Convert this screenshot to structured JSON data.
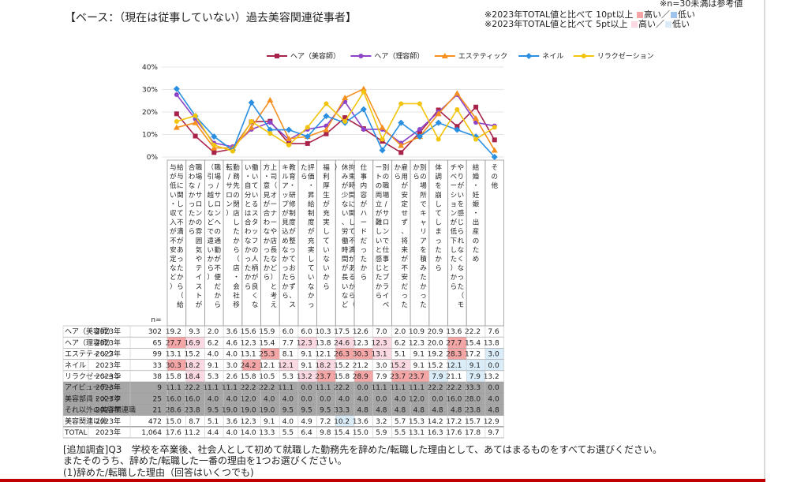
{
  "page": {
    "title": "【ベース：（現在は従事していない）過去美容関連従事者】",
    "note_small_n": "※n=30未満は参考値",
    "note_10pt": "※2023年TOTAL値と比べて 10pt以上",
    "note_5pt": "※2023年TOTAL値と比べて   5pt以上",
    "high_label": "高い",
    "low_label": "低い",
    "slash": "／",
    "n_label": "n=",
    "colors": {
      "high10": "#f4a6a6",
      "high5": "#fbd9e3",
      "low10": "#9fc4ef",
      "low5": "#d9ecf8",
      "ref_gray": "#a6a6a6"
    }
  },
  "footer": {
    "line1": "[追加調査]Q3　学校を卒業後、社会人として初めて就職した勤務先を辞めた/転職した理由として、あてはまるものをすべてお選びください。",
    "line2": "またそのうち、辞めた/転職した一番の理由を1つお選びください。",
    "line3": "(1)辞めた/転職した理由（回答はいくつでも)"
  },
  "chart_data": {
    "type": "line",
    "ylim": [
      0,
      40
    ],
    "yticks": [
      "0%",
      "10%",
      "20%",
      "30%",
      "40%"
    ],
    "categories": [
      "給与に関して不満があったから（給与が低い・収入が不安定など）",
      "職場/サロンの雰囲気やテイストが合わなかったから",
      "職場/サロンへの通勤が不便だから（引っ越しなどで遠いから）",
      "勤務先の閉店したから（店・会社移転/サロン）",
      "働いているスタッフの人柄が良くない・自分とは合わなかったから",
      "上司（オーナーや店長など）と考え方・意見が合わなかったから",
      "教育・研修制度が整っておらず、スキルアップが見込めなかったから",
      "評価・昇給制度が充実していなかったら",
      "福利厚生が充実していないから",
      "拘束時間に関して不満があるから（休みが少ない、労働時間が長いなど）",
      "仕事内容がハードだったから",
      "別の職場/サロンで仕事とプライベートの両立が難しいと感じたから",
      "雇用が安定せず、将来が不安だったから",
      "別の場所でキャリアを積みたかったから",
      "体調を崩してしまったから",
      "やりがいを感じられなくなった（モチベーションが低下した）から",
      "結婚・妊娠・出産のため",
      "その他"
    ],
    "series": [
      {
        "name": "ヘア（美容師）",
        "color": "#a8234a",
        "marker": "square",
        "values": [
          19.2,
          9.3,
          2.0,
          3.6,
          15.6,
          15.9,
          6.0,
          6.0,
          10.3,
          17.5,
          12.6,
          7.0,
          2.0,
          10.9,
          20.9,
          13.6,
          22.2,
          7.6
        ]
      },
      {
        "name": "ヘア（理容師）",
        "color": "#8e44c9",
        "marker": "circle",
        "values": [
          27.7,
          16.9,
          6.2,
          4.6,
          12.3,
          15.4,
          7.7,
          12.3,
          13.8,
          24.6,
          12.3,
          12.3,
          6.2,
          12.3,
          20.0,
          27.7,
          15.4,
          13.8
        ]
      },
      {
        "name": "エステティック",
        "color": "#f5901f",
        "marker": "triangle",
        "values": [
          13.1,
          15.2,
          4.0,
          4.0,
          13.1,
          25.3,
          8.1,
          9.1,
          12.1,
          26.3,
          30.3,
          13.1,
          5.1,
          9.1,
          19.2,
          28.3,
          17.2,
          3.0
        ]
      },
      {
        "name": "ネイル",
        "color": "#2a8fe0",
        "marker": "diamond",
        "values": [
          30.3,
          18.2,
          9.1,
          3.0,
          24.2,
          12.1,
          12.1,
          9.1,
          18.2,
          15.2,
          21.2,
          3.0,
          15.2,
          9.1,
          15.2,
          12.1,
          9.1,
          0.0
        ]
      },
      {
        "name": "リラクゼーション",
        "color": "#f2c40c",
        "marker": "circle",
        "values": [
          15.8,
          18.4,
          5.3,
          2.6,
          15.8,
          10.5,
          5.3,
          13.2,
          23.7,
          15.8,
          28.9,
          7.9,
          23.7,
          23.7,
          7.9,
          21.1,
          7.9,
          13.2
        ]
      }
    ]
  },
  "table": {
    "rows": [
      {
        "label": "ヘア（美容師）",
        "year": "2023年",
        "n": "302",
        "ref": false,
        "total": false,
        "values": [
          "19.2",
          "9.3",
          "2.0",
          "3.6",
          "15.6",
          "15.9",
          "6.0",
          "6.0",
          "10.3",
          "17.5",
          "12.6",
          "7.0",
          "2.0",
          "10.9",
          "20.9",
          "13.6",
          "22.2",
          "7.6"
        ],
        "hl": [
          "",
          "",
          "",
          "",
          "",
          "",
          "",
          "",
          "",
          "",
          "",
          "",
          "",
          "",
          "",
          "",
          "",
          ""
        ]
      },
      {
        "label": "ヘア（理容師）",
        "year": "2023年",
        "n": "65",
        "ref": false,
        "total": false,
        "values": [
          "27.7",
          "16.9",
          "6.2",
          "4.6",
          "12.3",
          "15.4",
          "7.7",
          "12.3",
          "13.8",
          "24.6",
          "12.3",
          "12.3",
          "6.2",
          "12.3",
          "20.0",
          "27.7",
          "15.4",
          "13.8"
        ],
        "hl": [
          "h10",
          "h5",
          "",
          "",
          "",
          "",
          "",
          "h5",
          "",
          "h5",
          "",
          "h5",
          "",
          "",
          "",
          "h10",
          "",
          ""
        ]
      },
      {
        "label": "エステティック",
        "year": "2023年",
        "n": "99",
        "ref": false,
        "total": false,
        "values": [
          "13.1",
          "15.2",
          "4.0",
          "4.0",
          "13.1",
          "25.3",
          "8.1",
          "9.1",
          "12.1",
          "26.3",
          "30.3",
          "13.1",
          "5.1",
          "9.1",
          "19.2",
          "28.3",
          "17.2",
          "3.0"
        ],
        "hl": [
          "",
          "",
          "",
          "",
          "",
          "h10",
          "",
          "",
          "",
          "h10",
          "h10",
          "h5",
          "",
          "",
          "",
          "h10",
          "",
          "l5"
        ]
      },
      {
        "label": "ネイル",
        "year": "2023年",
        "n": "33",
        "ref": false,
        "total": false,
        "values": [
          "30.3",
          "18.2",
          "9.1",
          "3.0",
          "24.2",
          "12.1",
          "12.1",
          "9.1",
          "18.2",
          "15.2",
          "21.2",
          "3.0",
          "15.2",
          "9.1",
          "15.2",
          "12.1",
          "9.1",
          "0.0"
        ],
        "hl": [
          "h10",
          "h5",
          "",
          "",
          "h10",
          "",
          "h5",
          "",
          "h5",
          "",
          "",
          "",
          "h5",
          "",
          "",
          "l5",
          "l5",
          "l5"
        ]
      },
      {
        "label": "リラクゼーション",
        "year": "2023年",
        "n": "38",
        "ref": false,
        "total": false,
        "values": [
          "15.8",
          "18.4",
          "5.3",
          "2.6",
          "15.8",
          "10.5",
          "5.3",
          "13.2",
          "23.7",
          "15.8",
          "28.9",
          "7.9",
          "23.7",
          "23.7",
          "7.9",
          "21.1",
          "7.9",
          "13.2"
        ],
        "hl": [
          "",
          "h5",
          "",
          "",
          "",
          "",
          "",
          "h5",
          "h10",
          "",
          "h10",
          "",
          "h10",
          "h10",
          "l5",
          "",
          "l5",
          ""
        ]
      },
      {
        "label": "アイビューティー",
        "year": "2023年",
        "n": "9",
        "ref": true,
        "total": false,
        "values": [
          "11.1",
          "22.2",
          "11.1",
          "11.1",
          "22.2",
          "22.2",
          "11.1",
          "0.0",
          "11.1",
          "22.2",
          "0.0",
          "11.1",
          "11.1",
          "11.1",
          "22.2",
          "22.2",
          "33.3",
          "0.0"
        ],
        "hl": [
          "",
          "",
          "",
          "",
          "",
          "",
          "",
          "",
          "",
          "",
          "",
          "",
          "",
          "",
          "",
          "",
          "",
          ""
        ]
      },
      {
        "label": "美容部員・メイク",
        "year": "2023年",
        "n": "25",
        "ref": true,
        "total": false,
        "values": [
          "16.0",
          "16.0",
          "4.0",
          "4.0",
          "12.0",
          "4.0",
          "4.0",
          "0.0",
          "0.0",
          "4.0",
          "4.0",
          "0.0",
          "4.0",
          "12.0",
          "0.0",
          "16.0",
          "28.0",
          "4.0"
        ],
        "hl": [
          "",
          "",
          "",
          "",
          "",
          "",
          "",
          "",
          "",
          "",
          "",
          "",
          "",
          "",
          "",
          "",
          "",
          ""
        ]
      },
      {
        "label": "それ以外の美容関連職",
        "year": "2023年",
        "n": "21",
        "ref": true,
        "total": false,
        "values": [
          "28.6",
          "23.8",
          "9.5",
          "19.0",
          "19.0",
          "19.0",
          "9.5",
          "9.5",
          "9.5",
          "33.3",
          "4.8",
          "4.8",
          "4.8",
          "4.8",
          "4.8",
          "4.8",
          "23.8",
          "4.8"
        ],
        "hl": [
          "",
          "",
          "",
          "",
          "",
          "",
          "",
          "",
          "",
          "",
          "",
          "",
          "",
          "",
          "",
          "",
          "",
          ""
        ]
      },
      {
        "label": "美容関連以外",
        "year": "2023年",
        "n": "472",
        "ref": false,
        "total": false,
        "values": [
          "15.0",
          "8.7",
          "5.1",
          "3.6",
          "12.3",
          "9.1",
          "4.0",
          "4.9",
          "7.2",
          "10.2",
          "13.6",
          "3.2",
          "5.7",
          "15.3",
          "14.2",
          "17.2",
          "15.7",
          "12.9"
        ],
        "hl": [
          "",
          "",
          "",
          "",
          "",
          "",
          "",
          "",
          "",
          "l5",
          "",
          "",
          "",
          "",
          "",
          "",
          "",
          ""
        ]
      },
      {
        "label": "TOTAL",
        "year": "2023年",
        "n": "1,064",
        "ref": false,
        "total": true,
        "values": [
          "17.6",
          "11.2",
          "4.4",
          "4.0",
          "14.0",
          "13.3",
          "5.5",
          "6.4",
          "9.8",
          "15.4",
          "15.0",
          "5.9",
          "5.5",
          "13.1",
          "16.3",
          "17.6",
          "17.8",
          "9.7"
        ],
        "hl": [
          "",
          "",
          "",
          "",
          "",
          "",
          "",
          "",
          "",
          "",
          "",
          "",
          "",
          "",
          "",
          "",
          "",
          ""
        ]
      }
    ]
  }
}
